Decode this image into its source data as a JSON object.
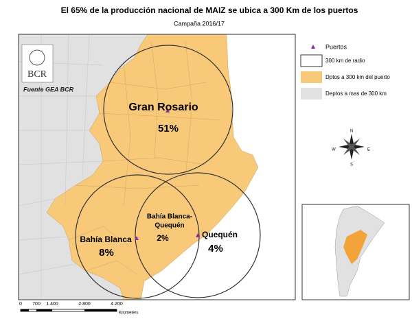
{
  "header": {
    "title": "El 65% de la producción nacional de MAIZ se ubica a 300 Km de los puertos",
    "subtitle": "Campaña 2016/17"
  },
  "map": {
    "logo": "BCR",
    "source": "Fuente GEA BCR",
    "ports": [
      {
        "name": "Gran Rosario",
        "share": "51%"
      },
      {
        "name_lines": [
          "Bahía Blanca-",
          "Quequén"
        ],
        "share": "2%"
      },
      {
        "name": "Bahía Blanca",
        "share": "8%"
      },
      {
        "name": "Quequén",
        "share": "4%"
      }
    ]
  },
  "legend": {
    "items": [
      "Puertos",
      "300 km de radio",
      "Dptos a 300 km del puerto",
      "Deptos a mas de 300 km"
    ]
  },
  "compass": {
    "n": "N",
    "e": "E",
    "s": "S",
    "w": "W"
  },
  "scale_bar": {
    "labels": [
      "0",
      "700",
      "1.400",
      "2.800",
      "4.200"
    ],
    "unit": "Kilometers"
  }
}
